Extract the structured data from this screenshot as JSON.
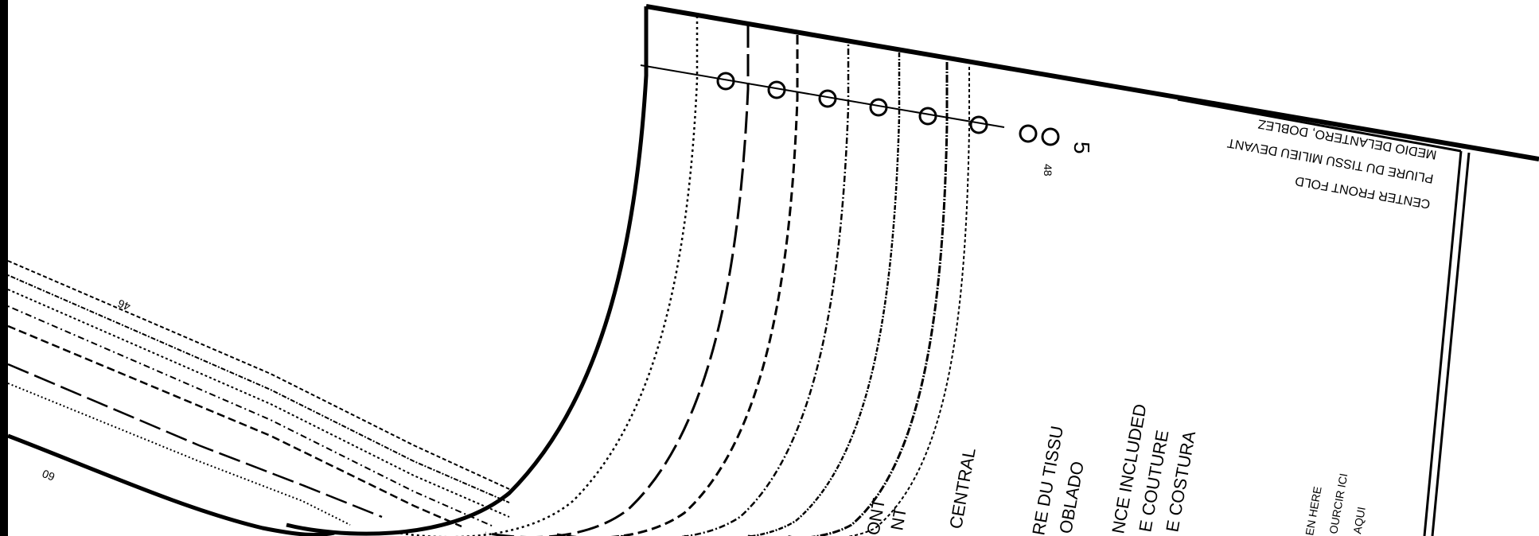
{
  "labels": {
    "fold_label_en": "CENTER FRONT FOLD",
    "fold_label_fr": "PLIURE DU TISSU MILIEU DEVANT",
    "fold_label_es": "MEDIO DELANTERO, DOBLEZ",
    "size_mark_5": "5",
    "size_mark_48": "48",
    "size_label_46": "46",
    "size_label_60": "60",
    "center_front_en_partial": "ONT",
    "center_front_fr_partial": "NT",
    "center_front_es_partial": "CENTRAL",
    "fold_fr_partial": "RE DU TISSU",
    "fold_es_partial": "OBLADO",
    "seam_en_partial": "NCE INCLUDED",
    "seam_fr_partial": "E COUTURE",
    "seam_es_partial": "E COSTURA",
    "shorten_en_partial": "EN HERE",
    "shorten_fr_partial": "OURCIR ICI",
    "shorten_es_partial": "AQUI"
  },
  "colors": {
    "ink": "#000000",
    "paper": "#ffffff"
  }
}
